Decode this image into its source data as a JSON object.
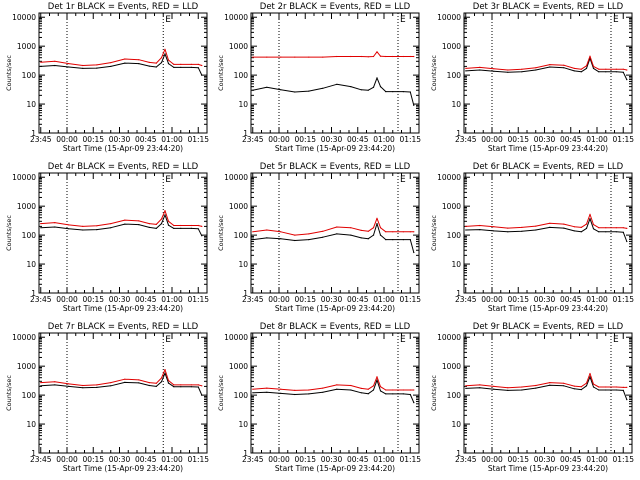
{
  "colors": {
    "events": "#000000",
    "lld": "#e00000",
    "background": "#ffffff"
  },
  "figure": {
    "xtick_labels": [
      "23:45",
      "00:00",
      "00:15",
      "00:30",
      "00:45",
      "01:00",
      "01:15"
    ],
    "ytick_labels": [
      "1",
      "10",
      "100",
      "1000",
      "10000"
    ],
    "vline_marker": "E"
  },
  "chart_data": [
    {
      "type": "line",
      "title": "Det 1r BLACK = Events, RED = LLD",
      "xlabel": "Start Time (15-Apr-09 23:44:20)",
      "ylabel": "Counts/sec",
      "yscale": "log",
      "ylim": [
        1,
        14000
      ],
      "xlim": [
        -1,
        95
      ],
      "vlines": [
        15,
        70
      ],
      "x": [
        0,
        8,
        16,
        24,
        32,
        40,
        48,
        56,
        62,
        66,
        69,
        71,
        73,
        76,
        80,
        86,
        90,
        92
      ],
      "series": [
        {
          "name": "BLACK = Events",
          "values": [
            200,
            215,
            190,
            170,
            175,
            200,
            260,
            250,
            205,
            190,
            270,
            540,
            250,
            185,
            185,
            185,
            180,
            100
          ]
        },
        {
          "name": "RED = LLD",
          "values": [
            280,
            300,
            250,
            215,
            225,
            270,
            360,
            340,
            275,
            260,
            400,
            780,
            330,
            235,
            235,
            235,
            235,
            215
          ]
        }
      ]
    },
    {
      "type": "line",
      "title": "Det 2r BLACK = Events, RED = LLD",
      "xlabel": "Start Time (15-Apr-09 23:44:20)",
      "ylabel": "Counts/sec",
      "yscale": "log",
      "ylim": [
        1,
        14000
      ],
      "xlim": [
        -1,
        95
      ],
      "vlines": [
        15,
        83
      ],
      "x": [
        0,
        8,
        16,
        24,
        32,
        40,
        48,
        56,
        62,
        66,
        69,
        71,
        73,
        76,
        80,
        86,
        90,
        92
      ],
      "series": [
        {
          "name": "BLACK = Events",
          "values": [
            30,
            38,
            31,
            26,
            28,
            35,
            48,
            40,
            31,
            30,
            38,
            80,
            40,
            27,
            27,
            27,
            26,
            9
          ]
        },
        {
          "name": "RED = LLD",
          "values": [
            420,
            420,
            420,
            420,
            420,
            420,
            440,
            440,
            440,
            430,
            440,
            640,
            450,
            440,
            440,
            440,
            440,
            440
          ]
        }
      ]
    },
    {
      "type": "line",
      "title": "Det 3r BLACK = Events, RED = LLD",
      "xlabel": "Start Time (15-Apr-09 23:44:20)",
      "ylabel": "Counts/sec",
      "yscale": "log",
      "ylim": [
        1,
        14000
      ],
      "xlim": [
        -1,
        95
      ],
      "vlines": [
        15,
        83
      ],
      "x": [
        0,
        8,
        16,
        24,
        32,
        40,
        48,
        56,
        62,
        66,
        69,
        71,
        73,
        76,
        80,
        86,
        90,
        92
      ],
      "series": [
        {
          "name": "BLACK = Events",
          "values": [
            140,
            150,
            135,
            125,
            130,
            150,
            190,
            180,
            140,
            130,
            170,
            380,
            170,
            130,
            130,
            130,
            125,
            70
          ]
        },
        {
          "name": "RED = LLD",
          "values": [
            170,
            185,
            165,
            150,
            160,
            180,
            230,
            220,
            170,
            160,
            210,
            450,
            200,
            160,
            160,
            160,
            160,
            150
          ]
        }
      ]
    },
    {
      "type": "line",
      "title": "Det 4r BLACK = Events, RED = LLD",
      "xlabel": "Start Time (15-Apr-09 23:44:20)",
      "ylabel": "Counts/sec",
      "yscale": "log",
      "ylim": [
        1,
        14000
      ],
      "xlim": [
        -1,
        95
      ],
      "vlines": [
        15,
        70
      ],
      "x": [
        0,
        8,
        16,
        24,
        32,
        40,
        48,
        56,
        62,
        66,
        69,
        71,
        73,
        76,
        80,
        86,
        90,
        92
      ],
      "series": [
        {
          "name": "BLACK = Events",
          "values": [
            180,
            190,
            165,
            150,
            155,
            180,
            240,
            230,
            185,
            170,
            250,
            500,
            220,
            170,
            170,
            170,
            165,
            95
          ]
        },
        {
          "name": "RED = LLD",
          "values": [
            250,
            270,
            225,
            200,
            210,
            250,
            330,
            310,
            250,
            235,
            360,
            700,
            300,
            215,
            215,
            215,
            215,
            200
          ]
        }
      ]
    },
    {
      "type": "line",
      "title": "Det 5r BLACK = Events, RED = LLD",
      "xlabel": "Start Time (15-Apr-09 23:44:20)",
      "ylabel": "Counts/sec",
      "yscale": "log",
      "ylim": [
        1,
        14000
      ],
      "xlim": [
        -1,
        95
      ],
      "vlines": [
        15,
        83
      ],
      "x": [
        0,
        8,
        16,
        24,
        32,
        40,
        48,
        56,
        62,
        66,
        69,
        71,
        73,
        76,
        80,
        86,
        90,
        92
      ],
      "series": [
        {
          "name": "BLACK = Events",
          "values": [
            70,
            80,
            75,
            65,
            70,
            85,
            110,
            100,
            80,
            75,
            100,
            250,
            100,
            70,
            70,
            70,
            70,
            25
          ]
        },
        {
          "name": "RED = LLD",
          "values": [
            130,
            150,
            130,
            100,
            110,
            135,
            190,
            180,
            145,
            135,
            180,
            380,
            180,
            130,
            130,
            130,
            130,
            130
          ]
        }
      ]
    },
    {
      "type": "line",
      "title": "Det 6r BLACK = Events, RED = LLD",
      "xlabel": "Start Time (15-Apr-09 23:44:20)",
      "ylabel": "Counts/sec",
      "yscale": "log",
      "ylim": [
        1,
        14000
      ],
      "xlim": [
        -1,
        95
      ],
      "vlines": [
        15,
        83
      ],
      "x": [
        0,
        8,
        16,
        24,
        32,
        40,
        48,
        56,
        62,
        66,
        69,
        71,
        73,
        76,
        80,
        86,
        90,
        92
      ],
      "series": [
        {
          "name": "BLACK = Events",
          "values": [
            150,
            155,
            140,
            130,
            135,
            150,
            185,
            175,
            140,
            130,
            170,
            370,
            165,
            130,
            130,
            130,
            125,
            60
          ]
        },
        {
          "name": "RED = LLD",
          "values": [
            200,
            215,
            195,
            175,
            185,
            205,
            255,
            240,
            195,
            185,
            240,
            520,
            230,
            180,
            180,
            180,
            180,
            170
          ]
        }
      ]
    },
    {
      "type": "line",
      "title": "Det 7r BLACK = Events, RED = LLD",
      "xlabel": "Start Time (15-Apr-09 23:44:20)",
      "ylabel": "Counts/sec",
      "yscale": "log",
      "ylim": [
        1,
        14000
      ],
      "xlim": [
        -1,
        95
      ],
      "vlines": [
        15,
        70
      ],
      "x": [
        0,
        8,
        16,
        24,
        32,
        40,
        48,
        56,
        62,
        66,
        69,
        71,
        73,
        76,
        80,
        86,
        90,
        92
      ],
      "series": [
        {
          "name": "BLACK = Events",
          "values": [
            210,
            225,
            200,
            180,
            185,
            210,
            275,
            265,
            215,
            200,
            290,
            570,
            260,
            195,
            195,
            195,
            190,
            100
          ]
        },
        {
          "name": "RED = LLD",
          "values": [
            270,
            290,
            245,
            215,
            225,
            270,
            355,
            335,
            270,
            255,
            390,
            760,
            320,
            225,
            225,
            225,
            225,
            210
          ]
        }
      ]
    },
    {
      "type": "line",
      "title": "Det 8r BLACK = Events, RED = LLD",
      "xlabel": "Start Time (15-Apr-09 23:44:20)",
      "ylabel": "Counts/sec",
      "yscale": "log",
      "ylim": [
        1,
        14000
      ],
      "xlim": [
        -1,
        95
      ],
      "vlines": [
        15,
        83
      ],
      "x": [
        0,
        8,
        16,
        24,
        32,
        40,
        48,
        56,
        62,
        66,
        69,
        71,
        73,
        76,
        80,
        86,
        90,
        92
      ],
      "series": [
        {
          "name": "BLACK = Events",
          "values": [
            120,
            125,
            115,
            105,
            110,
            125,
            160,
            150,
            120,
            112,
            150,
            330,
            140,
            110,
            110,
            110,
            105,
            55
          ]
        },
        {
          "name": "RED = LLD",
          "values": [
            160,
            175,
            160,
            145,
            150,
            175,
            225,
            215,
            170,
            160,
            210,
            430,
            195,
            150,
            150,
            150,
            150,
            150
          ]
        }
      ]
    },
    {
      "type": "line",
      "title": "Det 9r BLACK = Events, RED = LLD",
      "xlabel": "Start Time (15-Apr-09 23:44:20)",
      "ylabel": "Counts/sec",
      "yscale": "log",
      "ylim": [
        1,
        14000
      ],
      "xlim": [
        -1,
        95
      ],
      "vlines": [
        15,
        83
      ],
      "x": [
        0,
        8,
        16,
        24,
        32,
        40,
        48,
        56,
        62,
        66,
        69,
        71,
        73,
        76,
        80,
        86,
        90,
        92
      ],
      "series": [
        {
          "name": "BLACK = Events",
          "values": [
            170,
            180,
            160,
            145,
            150,
            175,
            220,
            210,
            165,
            155,
            210,
            430,
            190,
            150,
            150,
            150,
            145,
            70
          ]
        },
        {
          "name": "RED = LLD",
          "values": [
            210,
            225,
            200,
            180,
            190,
            215,
            270,
            255,
            205,
            195,
            260,
            560,
            240,
            190,
            190,
            190,
            185,
            185
          ]
        }
      ]
    }
  ]
}
